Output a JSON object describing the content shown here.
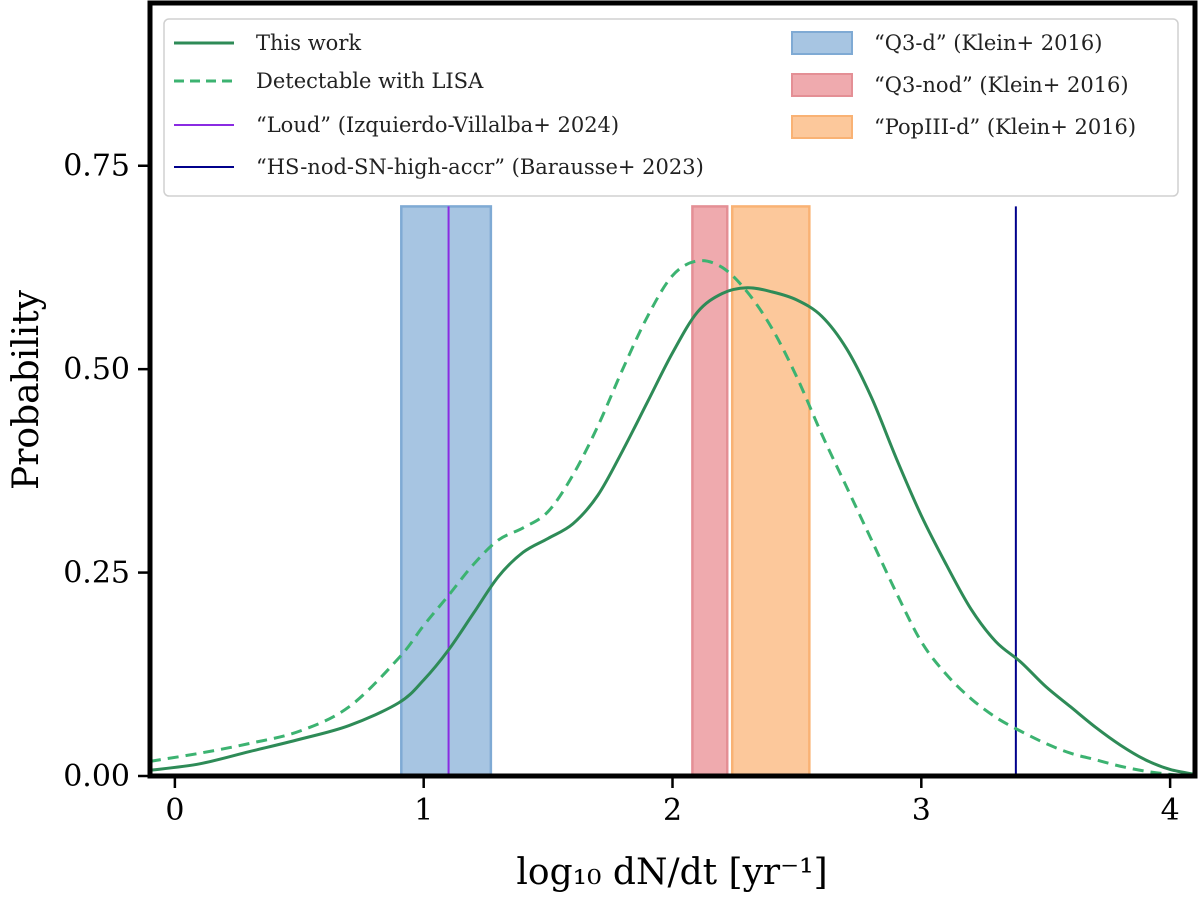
{
  "chart_data": {
    "type": "line",
    "xlabel": "log₁₀ dN/dt [yr⁻¹]",
    "ylabel": "Probability",
    "xlim": [
      -0.1,
      4.1
    ],
    "ylim": [
      0,
      0.95
    ],
    "x_ticks": [
      0,
      1,
      2,
      3,
      4
    ],
    "x_tick_labels": [
      "0",
      "1",
      "2",
      "3",
      "4"
    ],
    "y_ticks": [
      0,
      0.25,
      0.5,
      0.75
    ],
    "y_tick_labels": [
      "0.00",
      "0.25",
      "0.50",
      "0.75"
    ],
    "grid": false,
    "legend_position": "top",
    "series": [
      {
        "name": "This work",
        "style": "solid",
        "color": "#2e8b57",
        "x": [
          -0.1,
          0.1,
          0.3,
          0.5,
          0.7,
          0.9,
          1.0,
          1.1,
          1.2,
          1.3,
          1.4,
          1.5,
          1.6,
          1.7,
          1.8,
          1.9,
          2.0,
          2.1,
          2.2,
          2.3,
          2.4,
          2.5,
          2.6,
          2.7,
          2.8,
          2.9,
          3.0,
          3.1,
          3.2,
          3.3,
          3.4,
          3.5,
          3.6,
          3.7,
          3.8,
          3.9,
          4.0,
          4.1
        ],
        "y": [
          0.007,
          0.015,
          0.03,
          0.045,
          0.062,
          0.09,
          0.118,
          0.155,
          0.2,
          0.245,
          0.275,
          0.292,
          0.31,
          0.345,
          0.4,
          0.46,
          0.52,
          0.57,
          0.593,
          0.6,
          0.595,
          0.585,
          0.565,
          0.525,
          0.465,
          0.39,
          0.32,
          0.26,
          0.205,
          0.165,
          0.14,
          0.11,
          0.085,
          0.06,
          0.038,
          0.02,
          0.008,
          0.002
        ]
      },
      {
        "name": "Detectable with LISA",
        "style": "dashed",
        "color": "#3cb371",
        "x": [
          -0.1,
          0.1,
          0.3,
          0.5,
          0.7,
          0.9,
          1.0,
          1.1,
          1.2,
          1.3,
          1.4,
          1.5,
          1.6,
          1.7,
          1.8,
          1.9,
          2.0,
          2.1,
          2.2,
          2.3,
          2.4,
          2.5,
          2.6,
          2.7,
          2.8,
          2.9,
          3.0,
          3.1,
          3.2,
          3.3,
          3.4,
          3.5,
          3.6,
          3.7,
          3.8,
          3.9,
          4.0,
          4.1
        ],
        "y": [
          0.018,
          0.028,
          0.04,
          0.055,
          0.085,
          0.145,
          0.185,
          0.222,
          0.26,
          0.29,
          0.305,
          0.325,
          0.37,
          0.43,
          0.5,
          0.565,
          0.615,
          0.633,
          0.625,
          0.595,
          0.55,
          0.49,
          0.42,
          0.355,
          0.29,
          0.225,
          0.165,
          0.125,
          0.095,
          0.072,
          0.055,
          0.04,
          0.028,
          0.02,
          0.012,
          0.006,
          0.002,
          0.0
        ]
      }
    ],
    "vlines": [
      {
        "name": "“Loud” (Izquierdo-Villalba+ 2024)",
        "x": 1.1,
        "ymax": 0.7,
        "color": "#8a2be2"
      },
      {
        "name": "“HS-nod-SN-high-accr” (Barausse+ 2023)",
        "x": 3.38,
        "ymax": 0.7,
        "color": "#00008b"
      }
    ],
    "bands": [
      {
        "name": "“Q3-d” (Klein+ 2016)",
        "x0": 0.91,
        "x1": 1.27,
        "ymax": 0.7,
        "fill": "#a7c5e2",
        "edge": "#7faad4"
      },
      {
        "name": "“Q3-nod” (Klein+ 2016)",
        "x0": 2.08,
        "x1": 2.22,
        "ymax": 0.7,
        "fill": "#efaaae",
        "edge": "#e48f95"
      },
      {
        "name": "“PopIII-d” (Klein+ 2016)",
        "x0": 2.24,
        "x1": 2.55,
        "ymax": 0.7,
        "fill": "#fcc89b",
        "edge": "#f9b274"
      }
    ]
  }
}
